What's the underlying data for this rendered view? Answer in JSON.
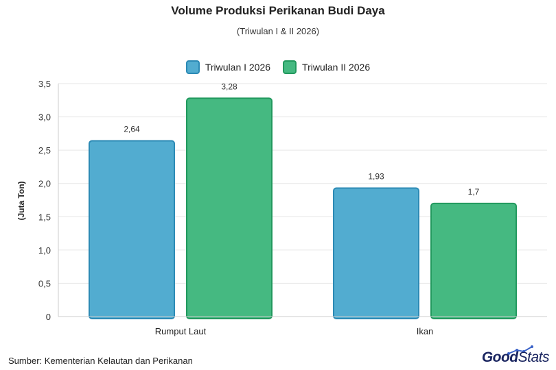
{
  "header": {
    "title": "Volume Produksi Perikanan Budi Daya",
    "subtitle": "(Triwulan I & II 2026)"
  },
  "footer": {
    "source": "Sumber: Kementerian Kelautan dan Perikanan",
    "logo_good": "Good",
    "logo_stats": "Stats"
  },
  "colors": {
    "series1_fill": "#52acd0",
    "series1_border": "#2c8ab5",
    "series2_fill": "#45b981",
    "series2_border": "#22995e",
    "grid": "#e6e6e6",
    "axis": "#cccccc"
  },
  "chart_data": {
    "type": "bar",
    "categories": [
      "Rumput Laut",
      "Ikan"
    ],
    "series": [
      {
        "name": "Triwulan I 2026",
        "values": [
          2.64,
          1.93
        ],
        "value_labels": [
          "2,64",
          "1,93"
        ]
      },
      {
        "name": "Triwulan II 2026",
        "values": [
          3.28,
          1.7
        ],
        "value_labels": [
          "3,28",
          "1,7"
        ]
      }
    ],
    "ylabel": "(Juta Ton)",
    "xlabel": "",
    "ylim": [
      0,
      3.5
    ],
    "yticks": [
      0,
      0.5,
      1.0,
      1.5,
      2.0,
      2.5,
      3.0,
      3.5
    ],
    "ytick_labels": [
      "0",
      "0,5",
      "1,0",
      "1,5",
      "2,0",
      "2,5",
      "3,0",
      "3,5"
    ],
    "grid": true,
    "legend_position": "top-center"
  }
}
